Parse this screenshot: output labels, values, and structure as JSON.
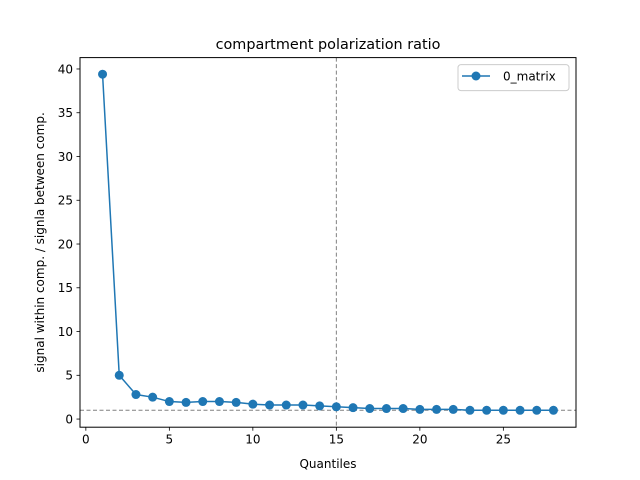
{
  "chart_data": {
    "type": "line",
    "title": "compartment polarization ratio",
    "xlabel": "Quantiles",
    "ylabel": "signal within comp. / signla between comp.",
    "xlim": [
      -0.35,
      29.35
    ],
    "ylim": [
      -0.93,
      41.3
    ],
    "xticks": [
      0,
      5,
      10,
      15,
      20,
      25
    ],
    "yticks": [
      0,
      5,
      10,
      15,
      20,
      25,
      30,
      35,
      40
    ],
    "series": [
      {
        "name": "0_matrix",
        "color": "#1f77b4",
        "marker": "circle",
        "x": [
          1,
          2,
          3,
          4,
          5,
          6,
          7,
          8,
          9,
          10,
          11,
          12,
          13,
          14,
          15,
          16,
          17,
          18,
          19,
          20,
          21,
          22,
          23,
          24,
          25,
          26,
          27,
          28
        ],
        "y": [
          39.4,
          5.0,
          2.8,
          2.5,
          2.0,
          1.9,
          2.0,
          2.0,
          1.9,
          1.7,
          1.6,
          1.6,
          1.6,
          1.5,
          1.4,
          1.3,
          1.2,
          1.2,
          1.2,
          1.1,
          1.1,
          1.1,
          1.0,
          1.0,
          1.0,
          1.0,
          1.0,
          1.0
        ]
      }
    ],
    "reference_lines": [
      {
        "orientation": "vertical",
        "value": 15,
        "style": "dashed",
        "color": "#808080"
      },
      {
        "orientation": "horizontal",
        "value": 1,
        "style": "dashed",
        "color": "#808080"
      }
    ],
    "legend": {
      "position": "top-right"
    },
    "grid": false
  }
}
